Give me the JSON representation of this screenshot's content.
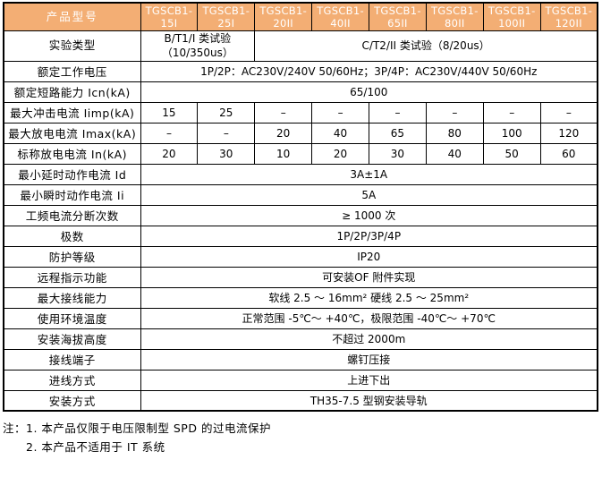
{
  "colors": {
    "header_bg": "#F3AE74",
    "header_text": "#FFFFFF",
    "border": "#000000",
    "body_text": "#000000"
  },
  "table": {
    "corner_label": "产品型号",
    "models": [
      {
        "prefix": "TGSCB1-",
        "suffix": "15I"
      },
      {
        "prefix": "TGSCB1-",
        "suffix": "25I"
      },
      {
        "prefix": "TGSCB1-",
        "suffix": "20II"
      },
      {
        "prefix": "TGSCB1-",
        "suffix": "40II"
      },
      {
        "prefix": "TGSCB1-",
        "suffix": "65II"
      },
      {
        "prefix": "TGSCB1-",
        "suffix": "80II"
      },
      {
        "prefix": "TGSCB1-",
        "suffix": "100II"
      },
      {
        "prefix": "TGSCB1-",
        "suffix": "120II"
      }
    ],
    "rows": [
      {
        "label": "实验类型",
        "cells": [
          {
            "text": "B/T1/I 类试验（10/350us）",
            "colspan": 2
          },
          {
            "text": "C/T2/II 类试验（8/20us）",
            "colspan": 6
          }
        ]
      },
      {
        "label": "额定工作电压",
        "cells": [
          {
            "text": "1P/2P：AC230V/240V 50/60Hz；3P/4P：AC230V/440V 50/60Hz",
            "colspan": 8
          }
        ]
      },
      {
        "label": "额定短路能力 Icn(kA)",
        "cells": [
          {
            "text": "65/100",
            "colspan": 8
          }
        ]
      },
      {
        "label": "最大冲击电流 Iimp(kA)",
        "cells": [
          {
            "text": "15"
          },
          {
            "text": "25"
          },
          {
            "text": "–"
          },
          {
            "text": "–"
          },
          {
            "text": "–"
          },
          {
            "text": "–"
          },
          {
            "text": "–"
          },
          {
            "text": "–"
          }
        ]
      },
      {
        "label": "最大放电电流 Imax(kA)",
        "cells": [
          {
            "text": "–"
          },
          {
            "text": "–"
          },
          {
            "text": "20"
          },
          {
            "text": "40"
          },
          {
            "text": "65"
          },
          {
            "text": "80"
          },
          {
            "text": "100"
          },
          {
            "text": "120"
          }
        ]
      },
      {
        "label": "标称放电电流 In(kA)",
        "cells": [
          {
            "text": "20"
          },
          {
            "text": "30"
          },
          {
            "text": "10"
          },
          {
            "text": "20"
          },
          {
            "text": "30"
          },
          {
            "text": "40"
          },
          {
            "text": "50"
          },
          {
            "text": "60"
          }
        ]
      },
      {
        "label": "最小延时动作电流 Id",
        "cells": [
          {
            "text": "3A±1A",
            "colspan": 8
          }
        ]
      },
      {
        "label": "最小瞬时动作电流 Ii",
        "cells": [
          {
            "text": "5A",
            "colspan": 8
          }
        ]
      },
      {
        "label": "工频电流分断次数",
        "cells": [
          {
            "text": "≥ 1000 次",
            "colspan": 8
          }
        ]
      },
      {
        "label": "极数",
        "cells": [
          {
            "text": "1P/2P/3P/4P",
            "colspan": 8
          }
        ]
      },
      {
        "label": "防护等级",
        "cells": [
          {
            "text": "IP20",
            "colspan": 8
          }
        ]
      },
      {
        "label": "远程指示功能",
        "cells": [
          {
            "text": "可安装OF 附件实现",
            "colspan": 8
          }
        ]
      },
      {
        "label": "最大接线能力",
        "cells": [
          {
            "text": "软线 2.5 ～ 16mm² 硬线 2.5 ～ 25mm²",
            "colspan": 8
          }
        ]
      },
      {
        "label": "使用环境温度",
        "cells": [
          {
            "text": "正常范围 -5℃～ +40℃，极限范围 -40℃～ +70℃",
            "colspan": 8
          }
        ]
      },
      {
        "label": "安装海拔高度",
        "cells": [
          {
            "text": "不超过 2000m",
            "colspan": 8
          }
        ]
      },
      {
        "label": "接线端子",
        "cells": [
          {
            "text": "螺钉压接",
            "colspan": 8
          }
        ]
      },
      {
        "label": "进线方式",
        "cells": [
          {
            "text": "上进下出",
            "colspan": 8
          }
        ]
      },
      {
        "label": "安装方式",
        "cells": [
          {
            "text": "TH35-7.5 型钢安装导轨",
            "colspan": 8
          }
        ]
      }
    ]
  },
  "notes": [
    "注：1. 本产品仅限于电压限制型 SPD 的过电流保护",
    "2. 本产品不适用于 IT 系统"
  ]
}
